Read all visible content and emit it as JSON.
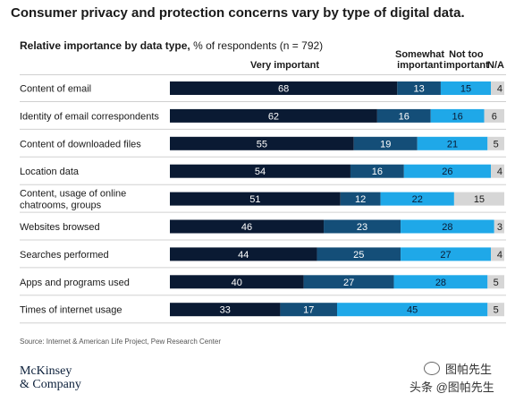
{
  "title": "Consumer privacy and protection concerns vary by type of digital data.",
  "subtitle_bold": "Relative importance by data type,",
  "subtitle_rest": " % of respondents (n = 792)",
  "headers": {
    "very": "Very important",
    "somewhat_1": "Somewhat",
    "somewhat_2": "important",
    "nottoo_1": "Not too",
    "nottoo_2": "important",
    "na": "N/A"
  },
  "source": "Source: Internet & American Life Project, Pew Research Center",
  "logo": {
    "line1": "McKinsey",
    "line2": "& Company"
  },
  "watermark": {
    "line1": "图帕先生",
    "line2": "头条 @图帕先生"
  },
  "colors": {
    "very": "#0a1a33",
    "somewhat": "#144e78",
    "nottoo": "#1fa8e8",
    "na": "#d6d6d6",
    "separator": "#d0d0d0"
  },
  "chart_data": {
    "type": "bar",
    "orientation": "horizontal",
    "stacked": true,
    "categories": [
      "Content of email",
      "Identity of email correspondents",
      "Content of downloaded files",
      "Location data",
      "Content, usage of online chatrooms, groups",
      "Websites browsed",
      "Searches performed",
      "Apps and programs used",
      "Times of internet usage"
    ],
    "category_lines": [
      [
        "Content of email"
      ],
      [
        "Identity of email correspondents"
      ],
      [
        "Content of downloaded files"
      ],
      [
        "Location data"
      ],
      [
        "Content, usage of online",
        "chatrooms, groups"
      ],
      [
        "Websites browsed"
      ],
      [
        "Searches performed"
      ],
      [
        "Apps and programs used"
      ],
      [
        "Times of internet usage"
      ]
    ],
    "series": [
      {
        "name": "Very important",
        "values": [
          68,
          62,
          55,
          54,
          51,
          46,
          44,
          40,
          33
        ]
      },
      {
        "name": "Somewhat important",
        "values": [
          13,
          16,
          19,
          16,
          12,
          23,
          25,
          27,
          17
        ]
      },
      {
        "name": "Not too important",
        "values": [
          15,
          16,
          21,
          26,
          22,
          28,
          27,
          28,
          45
        ]
      },
      {
        "name": "N/A",
        "values": [
          4,
          6,
          5,
          4,
          15,
          3,
          4,
          5,
          5
        ]
      }
    ],
    "unit": "% of respondents"
  }
}
